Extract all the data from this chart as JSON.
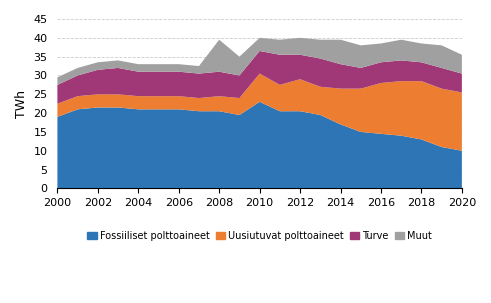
{
  "years": [
    2000,
    2001,
    2002,
    2003,
    2004,
    2005,
    2006,
    2007,
    2008,
    2009,
    2010,
    2011,
    2012,
    2013,
    2014,
    2015,
    2016,
    2017,
    2018,
    2019,
    2020
  ],
  "fossiiliset": [
    19.0,
    21.0,
    21.5,
    21.5,
    21.0,
    21.0,
    21.0,
    20.5,
    20.5,
    19.5,
    23.0,
    20.5,
    20.5,
    19.5,
    17.0,
    15.0,
    14.5,
    14.0,
    13.0,
    11.0,
    10.0
  ],
  "uusiutuvat": [
    3.5,
    3.5,
    3.5,
    3.5,
    3.5,
    3.5,
    3.5,
    3.5,
    4.0,
    4.5,
    7.5,
    7.0,
    8.5,
    7.5,
    9.5,
    11.5,
    13.5,
    14.5,
    15.5,
    15.5,
    15.5
  ],
  "turve": [
    5.0,
    5.5,
    6.5,
    7.0,
    6.5,
    6.5,
    6.5,
    6.5,
    6.5,
    6.0,
    6.0,
    8.0,
    6.5,
    7.5,
    6.5,
    5.5,
    5.5,
    5.5,
    5.0,
    5.5,
    5.0
  ],
  "muut": [
    2.0,
    2.0,
    2.0,
    2.0,
    2.0,
    2.0,
    2.0,
    2.0,
    8.5,
    5.0,
    3.5,
    4.0,
    4.5,
    5.0,
    6.5,
    6.0,
    5.0,
    5.5,
    5.0,
    6.0,
    5.0
  ],
  "colors": {
    "fossiiliset": "#2E75B6",
    "uusiutuvat": "#ED7D31",
    "turve": "#A03878",
    "muut": "#A0A0A0"
  },
  "labels": {
    "fossiiliset": "Fossiiliset polttoaineet",
    "uusiutuvat": "Uusiutuvat polttoaineet",
    "turve": "Turve",
    "muut": "Muut"
  },
  "ylabel": "TWh",
  "ylim": [
    0,
    45
  ],
  "yticks": [
    0,
    5,
    10,
    15,
    20,
    25,
    30,
    35,
    40,
    45
  ],
  "grid_color": "#CCCCCC",
  "bg_color": "#FFFFFF"
}
